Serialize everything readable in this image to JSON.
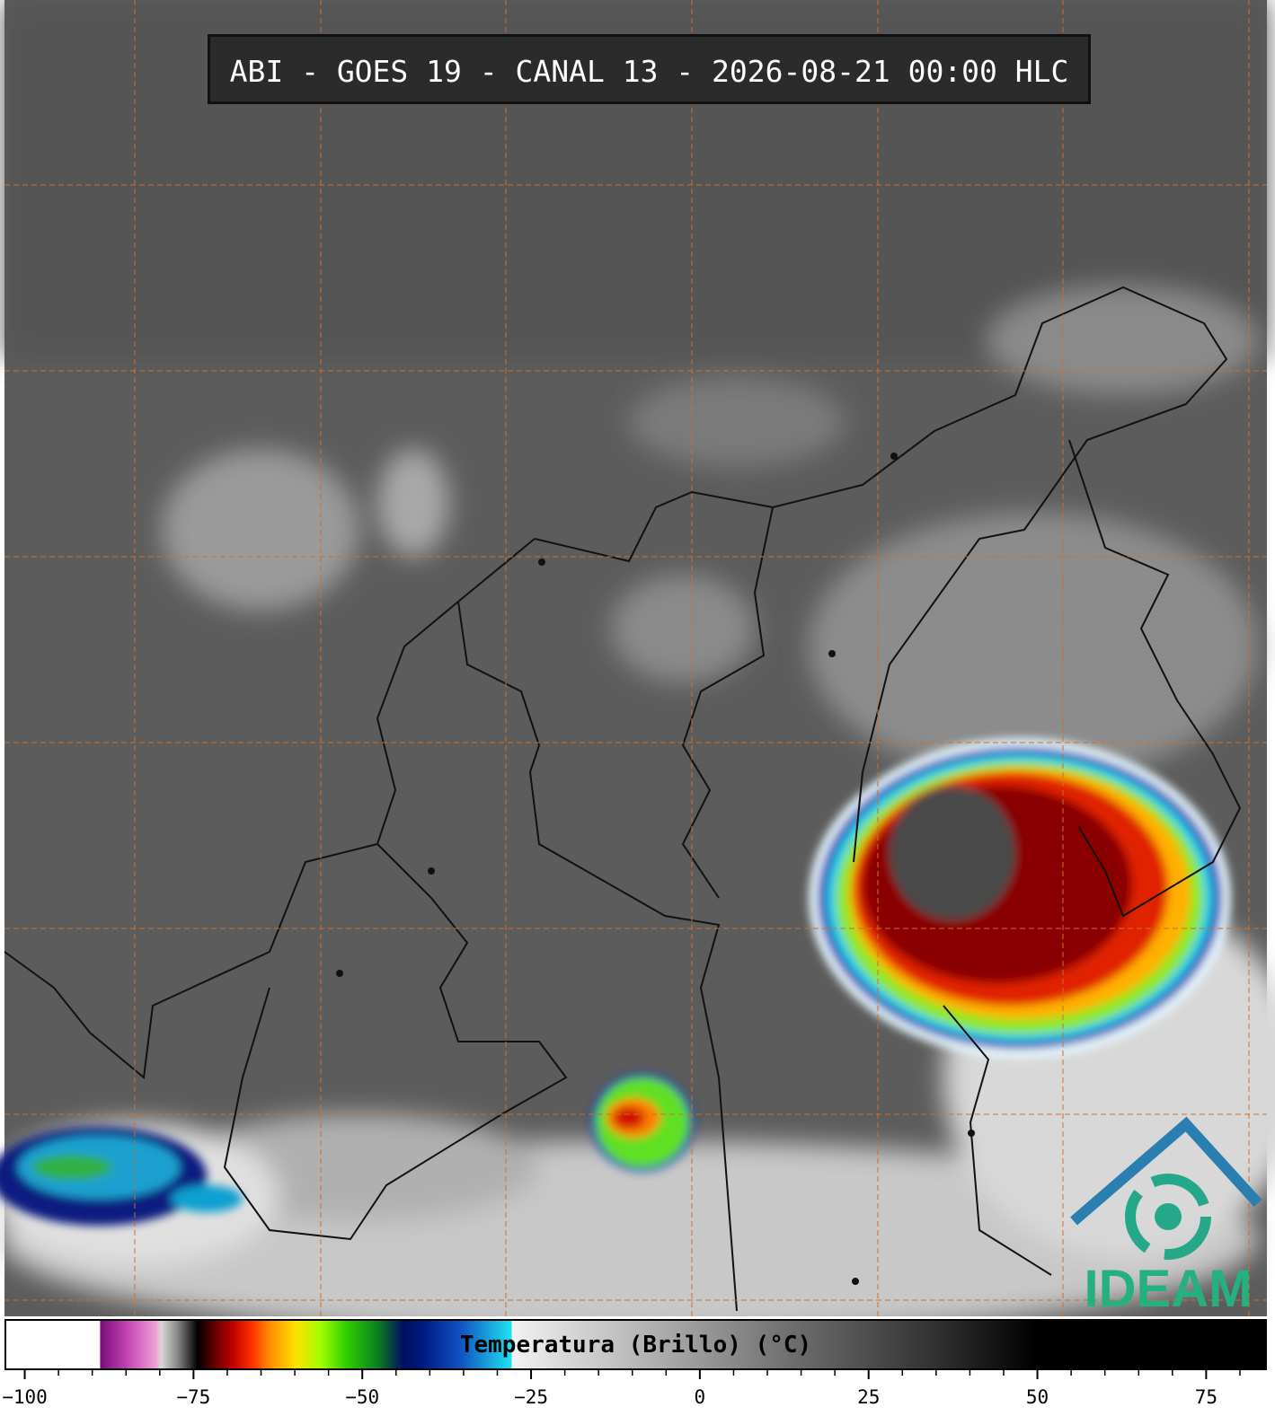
{
  "header": {
    "title": "ABI - GOES 19 - CANAL 13 - 2026-08-21 00:00 HLC"
  },
  "logo": {
    "text": "IDEAM"
  },
  "colorbar": {
    "label": "Temperatura (Brillo) (°C)",
    "xlim": [
      -103,
      84
    ],
    "ticks": [
      {
        "value": -100,
        "label": "−100"
      },
      {
        "value": -75,
        "label": "−75"
      },
      {
        "value": -50,
        "label": "−50"
      },
      {
        "value": -25,
        "label": "−25"
      },
      0,
      25,
      50,
      75
    ],
    "minor_ticks": [
      -95,
      -90,
      -85,
      -80,
      -70,
      -65,
      -60,
      -55,
      -45,
      -40,
      -35,
      -30,
      -20,
      -15,
      -10,
      -5,
      5,
      10,
      15,
      20,
      30,
      35,
      40,
      45,
      55,
      60,
      65,
      70,
      80
    ]
  }
}
